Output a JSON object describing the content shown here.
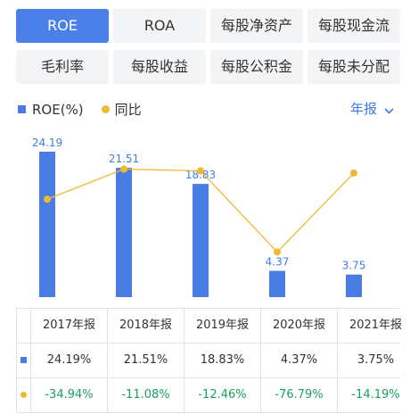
{
  "tabs": [
    {
      "label": "ROE",
      "active": true
    },
    {
      "label": "ROA",
      "active": false
    },
    {
      "label": "每股净资产",
      "active": false
    },
    {
      "label": "每股现金流",
      "active": false
    },
    {
      "label": "毛利率",
      "active": false
    },
    {
      "label": "每股收益",
      "active": false
    },
    {
      "label": "每股公积金",
      "active": false
    },
    {
      "label": "每股未分配",
      "active": false
    }
  ],
  "legend": {
    "bar_label": "ROE(%)",
    "line_label": "同比"
  },
  "period": {
    "label": "年报",
    "icon": "chevron-down-icon"
  },
  "colors": {
    "bar": "#4a7de3",
    "line": "#f0b830",
    "accent": "#3e7be6",
    "negative": "#19a15f"
  },
  "chart_data": {
    "type": "bar",
    "categories": [
      "2017年报",
      "2018年报",
      "2019年报",
      "2020年报",
      "2021年报"
    ],
    "series": [
      {
        "name": "ROE(%)",
        "type": "bar",
        "values": [
          24.19,
          21.51,
          18.83,
          4.37,
          3.75
        ],
        "labels": [
          "24.19",
          "21.51",
          "18.83",
          "4.37",
          "3.75"
        ]
      },
      {
        "name": "同比",
        "type": "line",
        "values": [
          -34.94,
          -11.08,
          -12.46,
          -76.79,
          -14.19
        ]
      }
    ],
    "grid": false
  },
  "table": {
    "headers": [
      "2017年报",
      "2018年报",
      "2019年报",
      "2020年报",
      "2021年报"
    ],
    "roe_row": [
      "24.19%",
      "21.51%",
      "18.83%",
      "4.37%",
      "3.75%"
    ],
    "yoy_row": [
      "-34.94%",
      "-11.08%",
      "-12.46%",
      "-76.79%",
      "-14.19%"
    ]
  }
}
